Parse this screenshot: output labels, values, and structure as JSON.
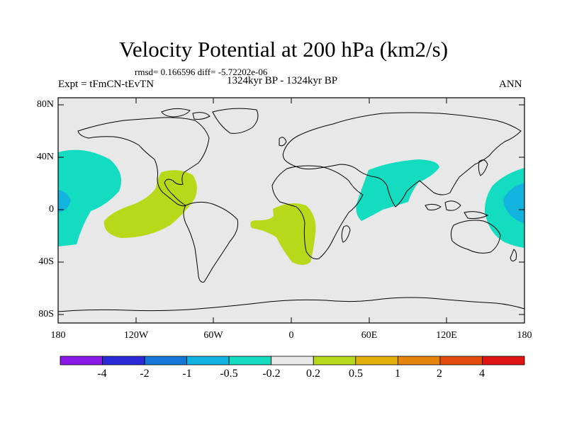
{
  "title": "Velocity Potential at 200 hPa (km2/s)",
  "stats": "rmsd= 0.166596 diff= -5.72202e-06",
  "expt": "Expt = tFmCN-tEvTN",
  "period": "1324kyr BP - 1324kyr BP",
  "season": "ANN",
  "lat_labels": [
    "80N",
    "40N",
    "0",
    "40S",
    "80S"
  ],
  "lon_labels": [
    "180",
    "120W",
    "60W",
    "0",
    "60E",
    "120E",
    "180"
  ],
  "colorbar": {
    "labels": [
      "-4",
      "-2",
      "-1",
      "-0.5",
      "-0.2",
      "0.2",
      "0.5",
      "1",
      "2",
      "4"
    ],
    "colors": [
      "#8a19e8",
      "#2a2ad8",
      "#1577d5",
      "#13b3e0",
      "#13dcc0",
      "#e8e8e8",
      "#b8d81a",
      "#e2b00a",
      "#e5850c",
      "#e34c0c",
      "#e11414"
    ]
  },
  "colors": {
    "ocean_bg": "#e8e8e8",
    "negative_weak": "#13dcc0",
    "negative_mid": "#13b3e0",
    "positive_weak": "#b8d81a"
  }
}
